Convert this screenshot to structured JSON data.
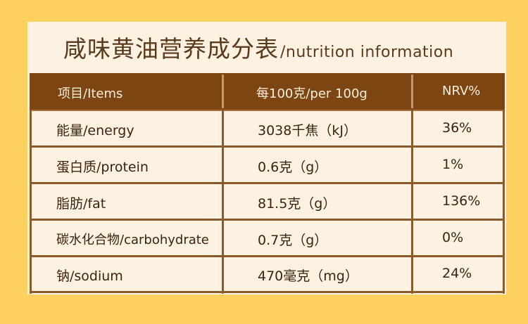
{
  "title": {
    "zh": "咸味黄油营养成分表",
    "en": "/nutrition information"
  },
  "table": {
    "headers": [
      "项目/Items",
      "每100克/per 100g",
      "NRV%"
    ],
    "rows": [
      [
        "能量/energy",
        "3038千焦（kJ）",
        "36%"
      ],
      [
        "蛋白质/protein",
        "0.6克（g）",
        "1%"
      ],
      [
        "脂肪/fat",
        "81.5克（g）",
        "136%"
      ],
      [
        "碳水化合物/carbohydrate",
        "0.7克（g）",
        "0%"
      ],
      [
        "钠/sodium",
        "470毫克（mg）",
        "24%"
      ]
    ]
  },
  "colors": {
    "background": "#fdd15f",
    "panel": "#fdf1e1",
    "header": "#7c4512",
    "text": "#3a2410"
  }
}
